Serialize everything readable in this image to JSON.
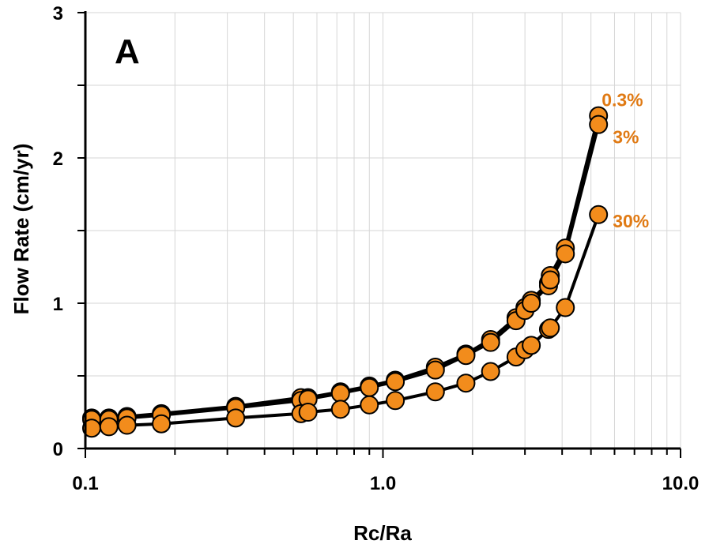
{
  "chart_data": {
    "type": "line",
    "panel_label": "A",
    "xlabel": "Rc/Ra",
    "ylabel": "Flow Rate (cm/yr)",
    "xscale": "log",
    "xlim": [
      0.1,
      10.0
    ],
    "ylim": [
      0,
      3
    ],
    "x_tick_labels": [
      "0.1",
      "1.0",
      "10.0"
    ],
    "y_tick_labels": [
      "0",
      "1",
      "2",
      "3"
    ],
    "grid": true,
    "legend": "none (series labeled at line ends)",
    "marker_color": "#f28c1c",
    "label_color": "#e07a14",
    "line_color": "#000000",
    "series": [
      {
        "name": "0.3%",
        "x": [
          0.105,
          0.12,
          0.138,
          0.18,
          0.32,
          0.53,
          0.56,
          0.72,
          0.9,
          1.1,
          1.5,
          1.9,
          2.3,
          2.8,
          3.0,
          3.15,
          3.6,
          3.65,
          4.1,
          5.3
        ],
        "y": [
          0.21,
          0.21,
          0.22,
          0.24,
          0.29,
          0.35,
          0.35,
          0.39,
          0.43,
          0.47,
          0.56,
          0.65,
          0.75,
          0.9,
          0.97,
          1.02,
          1.14,
          1.19,
          1.38,
          2.29
        ]
      },
      {
        "name": "3%",
        "x": [
          0.105,
          0.12,
          0.138,
          0.18,
          0.32,
          0.53,
          0.56,
          0.72,
          0.9,
          1.1,
          1.5,
          1.9,
          2.3,
          2.8,
          3.0,
          3.15,
          3.6,
          3.65,
          4.1,
          5.3
        ],
        "y": [
          0.2,
          0.2,
          0.21,
          0.23,
          0.28,
          0.33,
          0.34,
          0.38,
          0.42,
          0.46,
          0.54,
          0.64,
          0.73,
          0.88,
          0.95,
          1.0,
          1.12,
          1.16,
          1.34,
          2.23
        ]
      },
      {
        "name": "30%",
        "x": [
          0.105,
          0.12,
          0.138,
          0.18,
          0.32,
          0.53,
          0.56,
          0.72,
          0.9,
          1.1,
          1.5,
          1.9,
          2.3,
          2.8,
          3.0,
          3.15,
          3.6,
          3.65,
          4.1,
          5.3
        ],
        "y": [
          0.14,
          0.15,
          0.16,
          0.17,
          0.21,
          0.24,
          0.25,
          0.27,
          0.3,
          0.33,
          0.39,
          0.45,
          0.53,
          0.63,
          0.68,
          0.71,
          0.82,
          0.83,
          0.97,
          1.61
        ]
      }
    ]
  }
}
